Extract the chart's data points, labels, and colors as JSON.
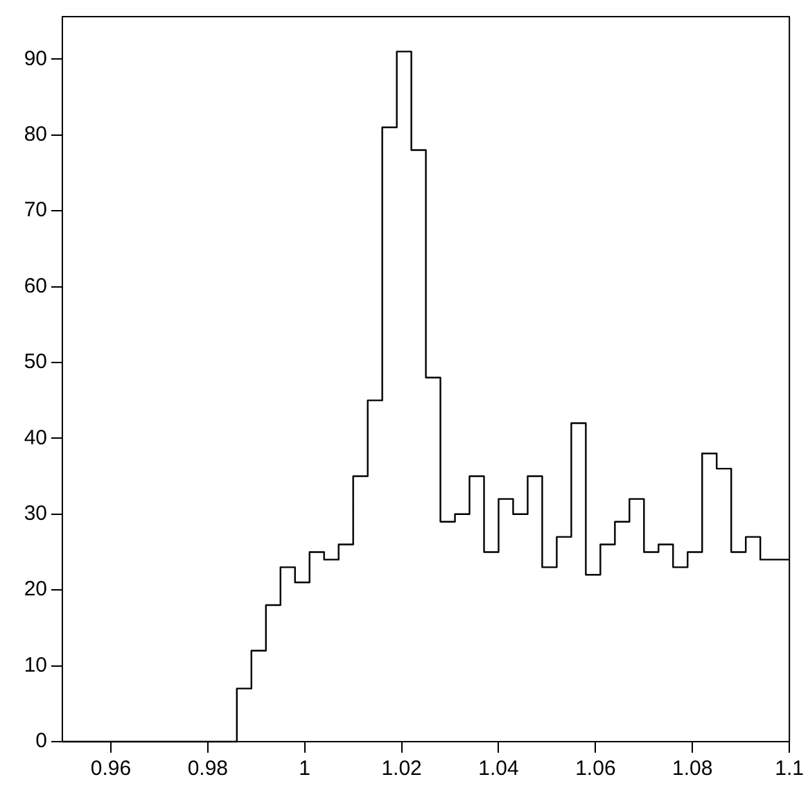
{
  "chart_data": {
    "type": "histogram",
    "bins": [
      0.95,
      0.953,
      0.956,
      0.959,
      0.962,
      0.965,
      0.968,
      0.971,
      0.974,
      0.977,
      0.98,
      0.983,
      0.986,
      0.989,
      0.992,
      0.995,
      0.998,
      1.001,
      1.004,
      1.007,
      1.01,
      1.013,
      1.016,
      1.019,
      1.022,
      1.025,
      1.028,
      1.031,
      1.034,
      1.037,
      1.04,
      1.043,
      1.046,
      1.049,
      1.052,
      1.055,
      1.058,
      1.061,
      1.064,
      1.067,
      1.07,
      1.073,
      1.076,
      1.079,
      1.082,
      1.085,
      1.088,
      1.091,
      1.094,
      1.097,
      1.1
    ],
    "values": [
      0,
      0,
      0,
      0,
      0,
      0,
      0,
      0,
      0,
      0,
      0,
      0,
      7,
      12,
      18,
      23,
      21,
      25,
      24,
      26,
      35,
      45,
      81,
      91,
      78,
      48,
      29,
      30,
      35,
      25,
      32,
      30,
      35,
      23,
      27,
      42,
      22,
      26,
      29,
      32,
      25,
      26,
      23,
      25,
      38,
      36,
      25,
      27,
      24,
      24
    ],
    "color": "#000000",
    "xlim": [
      0.95,
      1.1
    ],
    "xticks": [
      0.96,
      0.98,
      1,
      1.02,
      1.04,
      1.06,
      1.08,
      1.1
    ],
    "ylim": [
      0,
      95.6
    ],
    "yticks": [
      0,
      10,
      20,
      30,
      40,
      50,
      60,
      70,
      80,
      90
    ],
    "grid": false,
    "legend": false
  }
}
